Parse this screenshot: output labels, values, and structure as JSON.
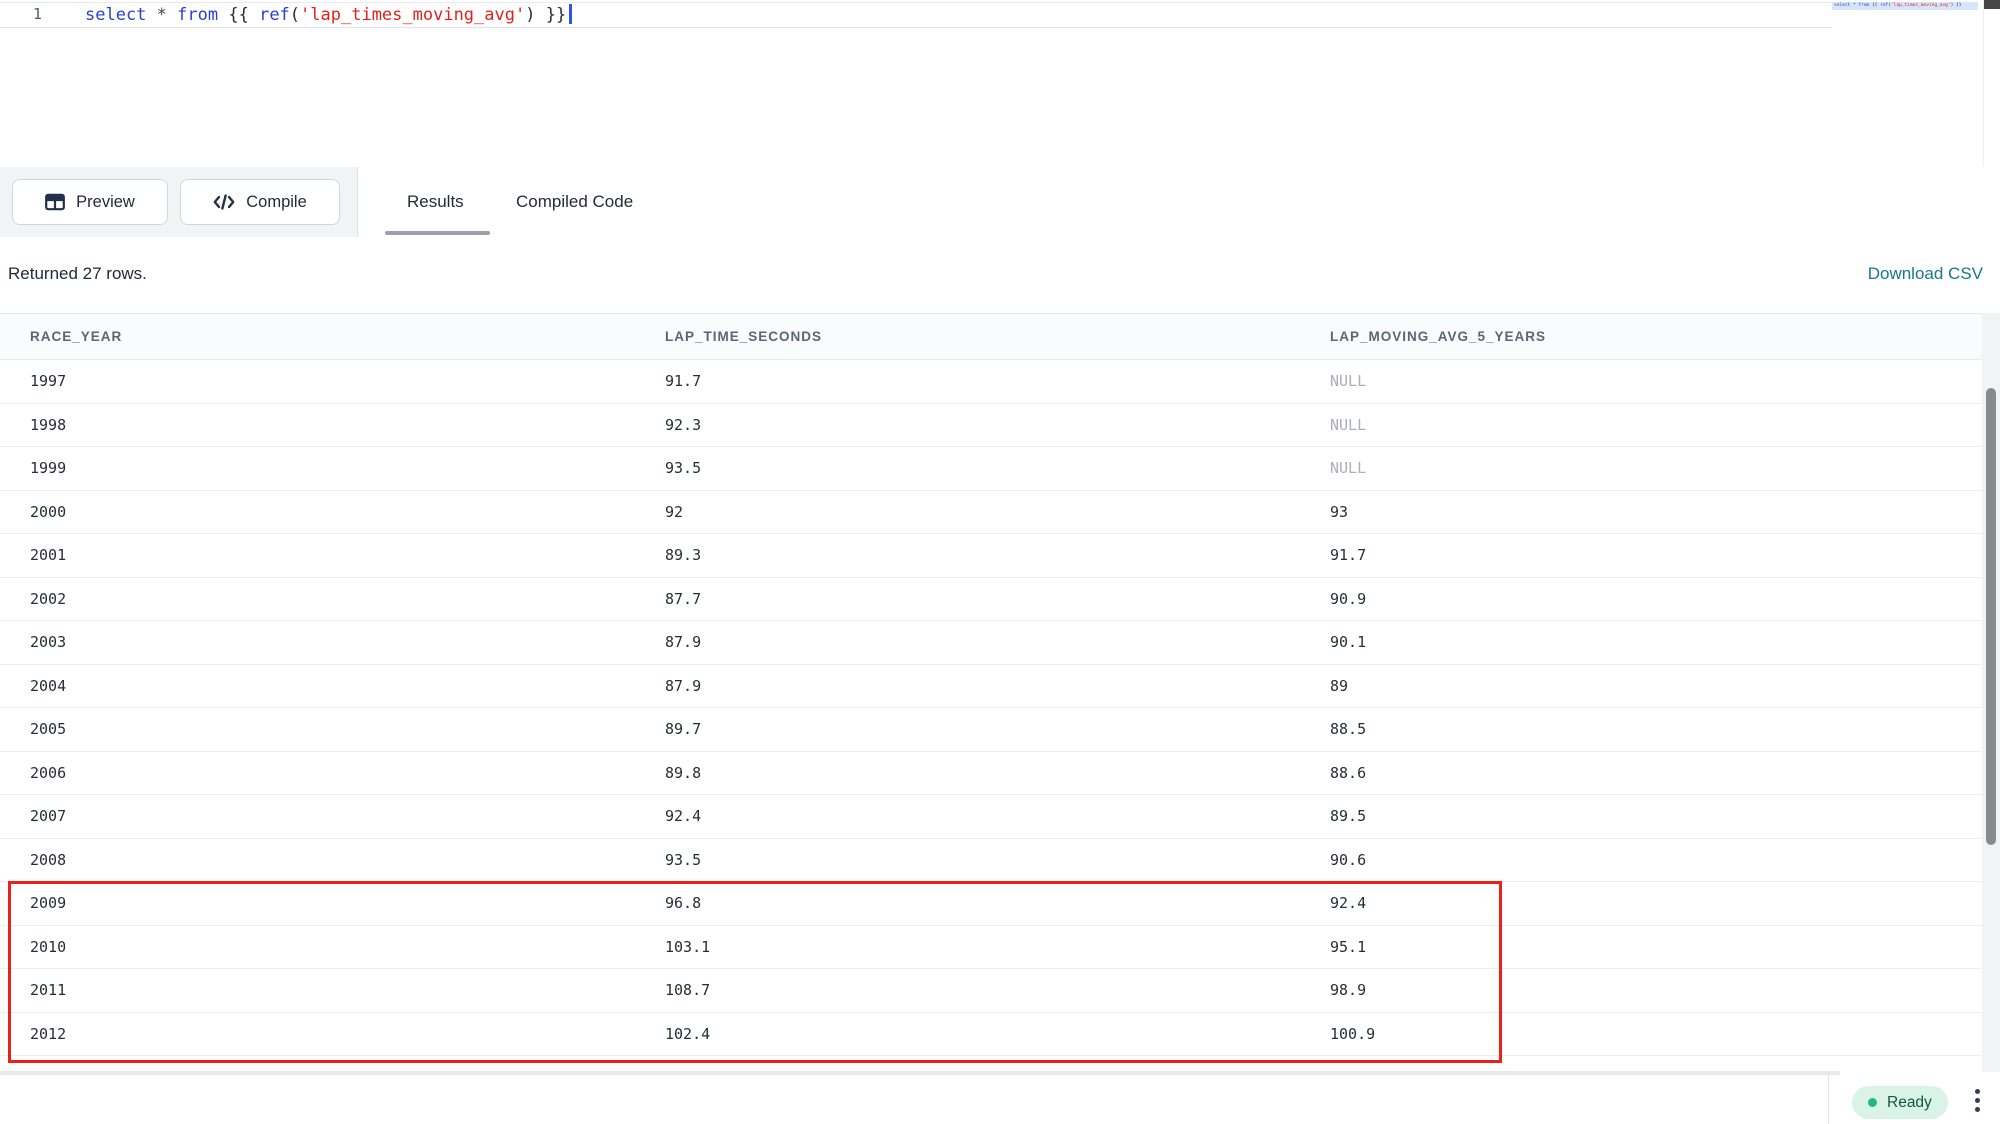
{
  "editor": {
    "line_number": "1",
    "code_tokens": [
      {
        "text": "select",
        "type": "keyword"
      },
      {
        "text": " ",
        "type": "plain"
      },
      {
        "text": "*",
        "type": "operator"
      },
      {
        "text": " ",
        "type": "plain"
      },
      {
        "text": "from",
        "type": "keyword"
      },
      {
        "text": " {{ ",
        "type": "plain"
      },
      {
        "text": "ref",
        "type": "keyword"
      },
      {
        "text": "(",
        "type": "plain"
      },
      {
        "text": "'lap_times_moving_avg'",
        "type": "string"
      },
      {
        "text": ")",
        "type": "plain"
      },
      {
        "text": " }}",
        "type": "plain"
      }
    ]
  },
  "toolbar": {
    "preview_label": "Preview",
    "compile_label": "Compile",
    "tabs": [
      {
        "label": "Results",
        "active": true
      },
      {
        "label": "Compiled Code",
        "active": false
      }
    ]
  },
  "results": {
    "summary": "Returned 27 rows.",
    "download_label": "Download CSV"
  },
  "table": {
    "columns": [
      "RACE_YEAR",
      "LAP_TIME_SECONDS",
      "LAP_MOVING_AVG_5_YEARS"
    ],
    "null_literal": "NULL",
    "rows": [
      [
        "1997",
        "91.7",
        "NULL"
      ],
      [
        "1998",
        "92.3",
        "NULL"
      ],
      [
        "1999",
        "93.5",
        "NULL"
      ],
      [
        "2000",
        "92",
        "93"
      ],
      [
        "2001",
        "89.3",
        "91.7"
      ],
      [
        "2002",
        "87.7",
        "90.9"
      ],
      [
        "2003",
        "87.9",
        "90.1"
      ],
      [
        "2004",
        "87.9",
        "89"
      ],
      [
        "2005",
        "89.7",
        "88.5"
      ],
      [
        "2006",
        "89.8",
        "88.6"
      ],
      [
        "2007",
        "92.4",
        "89.5"
      ],
      [
        "2008",
        "93.5",
        "90.6"
      ],
      [
        "2009",
        "96.8",
        "92.4"
      ],
      [
        "2010",
        "103.1",
        "95.1"
      ],
      [
        "2011",
        "108.7",
        "98.9"
      ],
      [
        "2012",
        "102.4",
        "100.9"
      ]
    ],
    "highlighted_row_indices": [
      12,
      13,
      14,
      15
    ]
  },
  "status_bar": {
    "ready_label": "Ready"
  },
  "icons": {
    "preview_button": "table-grid-icon",
    "compile_button": "code-icon",
    "status_menu": "kebab-menu-icon",
    "ready_indicator": "green-dot"
  },
  "colors": {
    "keyword_blue": "#2940d3",
    "string_red": "#df231c",
    "download_teal": "#15788c",
    "ready_badge_bg": "#d9f3e6",
    "ready_dot_green": "#25b97b",
    "highlight_red": "#ec2115"
  }
}
